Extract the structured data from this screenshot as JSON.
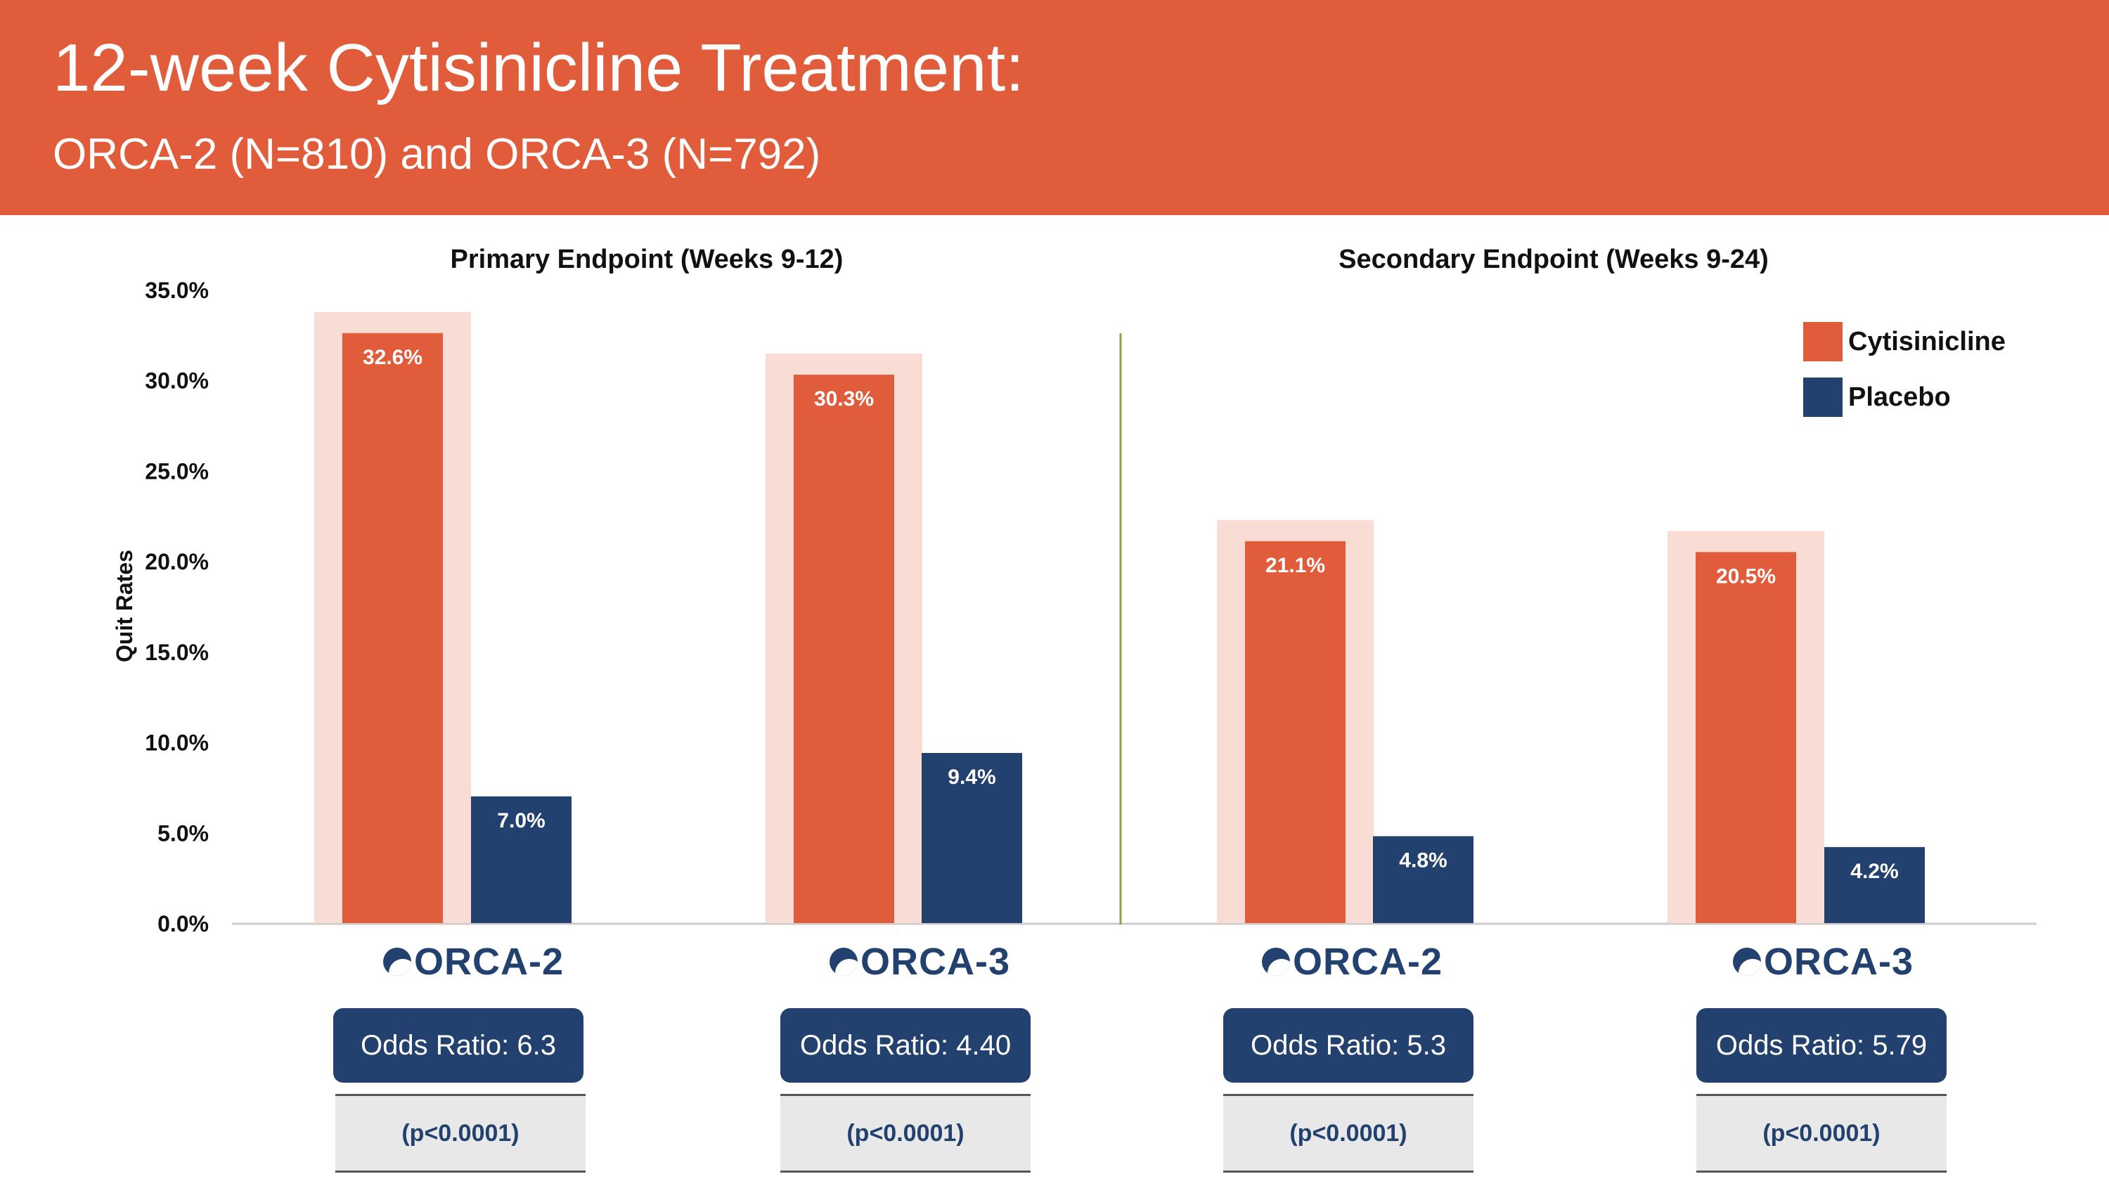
{
  "header": {
    "title": "12-week Cytisinicline Treatment:",
    "subtitle": "ORCA-2 (N=810) and ORCA-3 (N=792)"
  },
  "colors": {
    "header_bg": "#e15c3b",
    "cytisinicline": "#e15c3b",
    "placebo": "#22416e",
    "highlight": "#f9ddd5",
    "divider": "#8fa24a"
  },
  "panels": [
    {
      "title": "Primary Endpoint (Weeks 9-12)"
    },
    {
      "title": "Secondary Endpoint (Weeks 9-24)"
    }
  ],
  "groups": [
    {
      "logo": "ORCA-2",
      "odds": "Odds Ratio: 6.3",
      "p": "(p<0.0001)"
    },
    {
      "logo": "ORCA-3",
      "odds": "Odds Ratio: 4.40",
      "p": "(p<0.0001)"
    },
    {
      "logo": "ORCA-2",
      "odds": "Odds Ratio: 5.3",
      "p": "(p<0.0001)"
    },
    {
      "logo": "ORCA-3",
      "odds": "Odds Ratio: 5.79",
      "p": "(p<0.0001)"
    }
  ],
  "legend": {
    "cytisinicline": "Cytisinicline",
    "placebo": "Placebo"
  },
  "chart_data": {
    "type": "bar",
    "categories": [
      "ORCA-2",
      "ORCA-3",
      "ORCA-2",
      "ORCA-3"
    ],
    "series": [
      {
        "name": "Cytisinicline",
        "values": [
          32.6,
          30.3,
          21.1,
          20.5
        ],
        "labels": [
          "32.6%",
          "30.3%",
          "21.1%",
          "20.5%"
        ]
      },
      {
        "name": "Placebo",
        "values": [
          7.0,
          9.4,
          4.8,
          4.2
        ],
        "labels": [
          "7.0%",
          "9.4%",
          "4.8%",
          "4.2%"
        ]
      }
    ],
    "ylabel": "Quit Rates",
    "ylim": [
      0,
      35
    ],
    "yticks": [
      "0.0%",
      "5.0%",
      "10.0%",
      "15.0%",
      "20.0%",
      "25.0%",
      "30.0%",
      "35.0%"
    ],
    "grid": false,
    "legend_position": "top-right"
  }
}
